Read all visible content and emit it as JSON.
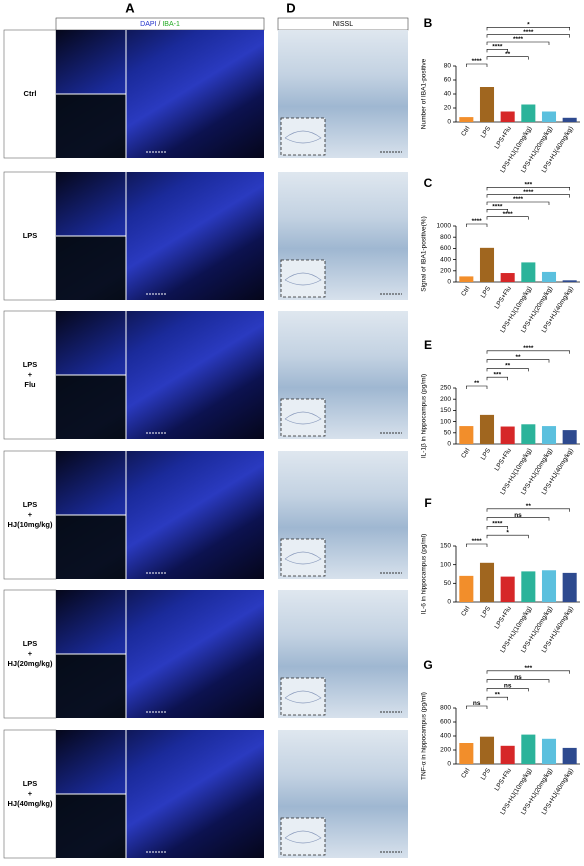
{
  "panel_a": {
    "letter": "A",
    "header_parts": [
      {
        "text": "DAPI",
        "color": "#2233cc"
      },
      {
        "text": " / ",
        "color": "#222222"
      },
      {
        "text": "IBA-1",
        "color": "#22aa22"
      }
    ]
  },
  "panel_d": {
    "letter": "D",
    "header": "NISSL"
  },
  "rows": [
    {
      "label": [
        "Ctrl"
      ]
    },
    {
      "label": [
        "LPS"
      ]
    },
    {
      "label": [
        "LPS",
        "+",
        "Flu"
      ]
    },
    {
      "label": [
        "LPS",
        "+",
        "HJ(10mg/kg)"
      ]
    },
    {
      "label": [
        "LPS",
        "+",
        "HJ(20mg/kg)"
      ]
    },
    {
      "label": [
        "LPS",
        "+",
        "HJ(40mg/kg)"
      ]
    }
  ],
  "chart_data": [
    {
      "type": "bar",
      "panel": "B",
      "y_label": "Number of IBA1-positive",
      "categories": [
        "Ctrl",
        "LPS",
        "LPS+Flu",
        "LPS+HJ(10mg/kg)",
        "LPS+HJ(20mg/kg)",
        "LPS+HJ(40mg/kg)"
      ],
      "values": [
        7,
        50,
        15,
        25,
        15,
        6
      ],
      "colors": [
        "#f28e2b",
        "#a0661f",
        "#d62728",
        "#2bb39a",
        "#5bc0de",
        "#2e4a8f"
      ],
      "ylim": [
        0,
        80
      ],
      "yticks": [
        0,
        20,
        40,
        60,
        80
      ],
      "comparisons": [
        {
          "label": "****",
          "between": [
            0,
            1
          ]
        },
        {
          "label": "**",
          "between": [
            1,
            3
          ]
        },
        {
          "label": "****",
          "between": [
            1,
            2
          ]
        },
        {
          "label": "****",
          "between": [
            1,
            4
          ]
        },
        {
          "label": "****",
          "between": [
            1,
            5
          ]
        },
        {
          "label": "*",
          "between": [
            1,
            5
          ]
        }
      ]
    },
    {
      "type": "bar",
      "panel": "C",
      "y_label": "Signal of IBA1-positive(%)",
      "categories": [
        "Ctrl",
        "LPS",
        "LPS+Flu",
        "LPS+HJ(10mg/kg)",
        "LPS+HJ(20mg/kg)",
        "LPS+HJ(40mg/kg)"
      ],
      "values": [
        100,
        610,
        160,
        350,
        180,
        30
      ],
      "colors": [
        "#f28e2b",
        "#a0661f",
        "#d62728",
        "#2bb39a",
        "#5bc0de",
        "#2e4a8f"
      ],
      "ylim": [
        0,
        1000
      ],
      "yticks": [
        0,
        200,
        400,
        600,
        800,
        1000
      ],
      "comparisons": [
        {
          "label": "****",
          "between": [
            0,
            1
          ]
        },
        {
          "label": "****",
          "between": [
            1,
            3
          ]
        },
        {
          "label": "****",
          "between": [
            1,
            2
          ]
        },
        {
          "label": "****",
          "between": [
            1,
            4
          ]
        },
        {
          "label": "****",
          "between": [
            1,
            5
          ]
        },
        {
          "label": "***",
          "between": [
            1,
            5
          ]
        }
      ]
    },
    {
      "type": "bar",
      "panel": "E",
      "y_label": "IL-1β in hippocampus (pg/ml)",
      "categories": [
        "Ctrl",
        "LPS",
        "LPS+Flu",
        "LPS+HJ(10mg/kg)",
        "LPS+HJ(20mg/kg)",
        "LPS+HJ(40mg/kg)"
      ],
      "values": [
        80,
        130,
        78,
        88,
        80,
        62
      ],
      "colors": [
        "#f28e2b",
        "#a0661f",
        "#d62728",
        "#2bb39a",
        "#5bc0de",
        "#2e4a8f"
      ],
      "ylim": [
        0,
        250
      ],
      "yticks": [
        0,
        50,
        100,
        150,
        200,
        250
      ],
      "comparisons": [
        {
          "label": "**",
          "between": [
            0,
            1
          ]
        },
        {
          "label": "***",
          "between": [
            1,
            2
          ]
        },
        {
          "label": "**",
          "between": [
            1,
            3
          ]
        },
        {
          "label": "**",
          "between": [
            1,
            4
          ]
        },
        {
          "label": "****",
          "between": [
            1,
            5
          ]
        }
      ]
    },
    {
      "type": "bar",
      "panel": "F",
      "y_label": "IL-6 in hippocampus (pg/ml)",
      "categories": [
        "Ctrl",
        "LPS",
        "LPS+Flu",
        "LPS+HJ(10mg/kg)",
        "LPS+HJ(20mg/kg)",
        "LPS+HJ(40mg/kg)"
      ],
      "values": [
        70,
        105,
        68,
        82,
        85,
        78
      ],
      "colors": [
        "#f28e2b",
        "#a0661f",
        "#d62728",
        "#2bb39a",
        "#5bc0de",
        "#2e4a8f"
      ],
      "ylim": [
        0,
        150
      ],
      "yticks": [
        0,
        50,
        100,
        150
      ],
      "comparisons": [
        {
          "label": "****",
          "between": [
            0,
            1
          ]
        },
        {
          "label": "*",
          "between": [
            1,
            3
          ]
        },
        {
          "label": "****",
          "between": [
            1,
            2
          ]
        },
        {
          "label": "ns",
          "between": [
            1,
            4
          ]
        },
        {
          "label": "**",
          "between": [
            1,
            5
          ]
        }
      ]
    },
    {
      "type": "bar",
      "panel": "G",
      "y_label": "TNF-α in hippocampus (pg/ml)",
      "categories": [
        "Ctrl",
        "LPS",
        "LPS+Flu",
        "LPS+HJ(10mg/kg)",
        "LPS+HJ(20mg/kg)",
        "LPS+HJ(40mg/kg)"
      ],
      "values": [
        300,
        390,
        260,
        420,
        360,
        230
      ],
      "colors": [
        "#f28e2b",
        "#a0661f",
        "#d62728",
        "#2bb39a",
        "#5bc0de",
        "#2e4a8f"
      ],
      "ylim": [
        0,
        800
      ],
      "yticks": [
        0,
        200,
        400,
        600,
        800
      ],
      "comparisons": [
        {
          "label": "ns",
          "between": [
            0,
            1
          ]
        },
        {
          "label": "**",
          "between": [
            1,
            2
          ]
        },
        {
          "label": "ns",
          "between": [
            1,
            3
          ]
        },
        {
          "label": "ns",
          "between": [
            1,
            4
          ]
        },
        {
          "label": "***",
          "between": [
            1,
            5
          ]
        }
      ]
    }
  ]
}
